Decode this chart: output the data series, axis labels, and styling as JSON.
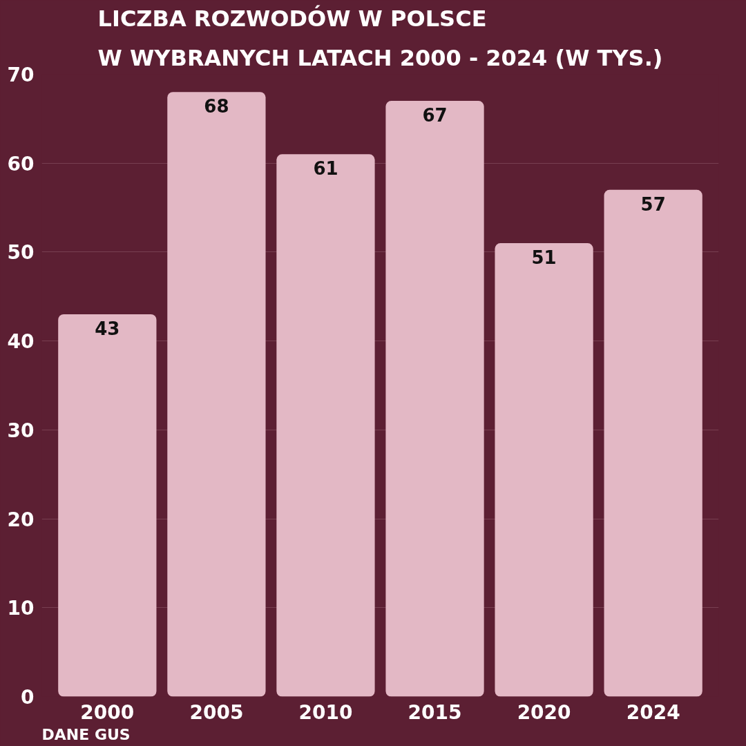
{
  "chart_data": {
    "type": "bar",
    "title": "LICZBA ROZWODÓW W POLSCE\nW WYBRANYCH LATACH 2000 - 2024 (W TYS.)",
    "categories": [
      "2000",
      "2005",
      "2010",
      "2015",
      "2020",
      "2024"
    ],
    "values": [
      43,
      68,
      61,
      67,
      51,
      57
    ],
    "color": "#e3b8c5",
    "ylim": [
      0,
      70
    ],
    "yticks": [
      0,
      10,
      20,
      30,
      40,
      50,
      60,
      70
    ],
    "grid": "y",
    "data_labels": true,
    "annotations": [
      "DANE GUS"
    ]
  }
}
